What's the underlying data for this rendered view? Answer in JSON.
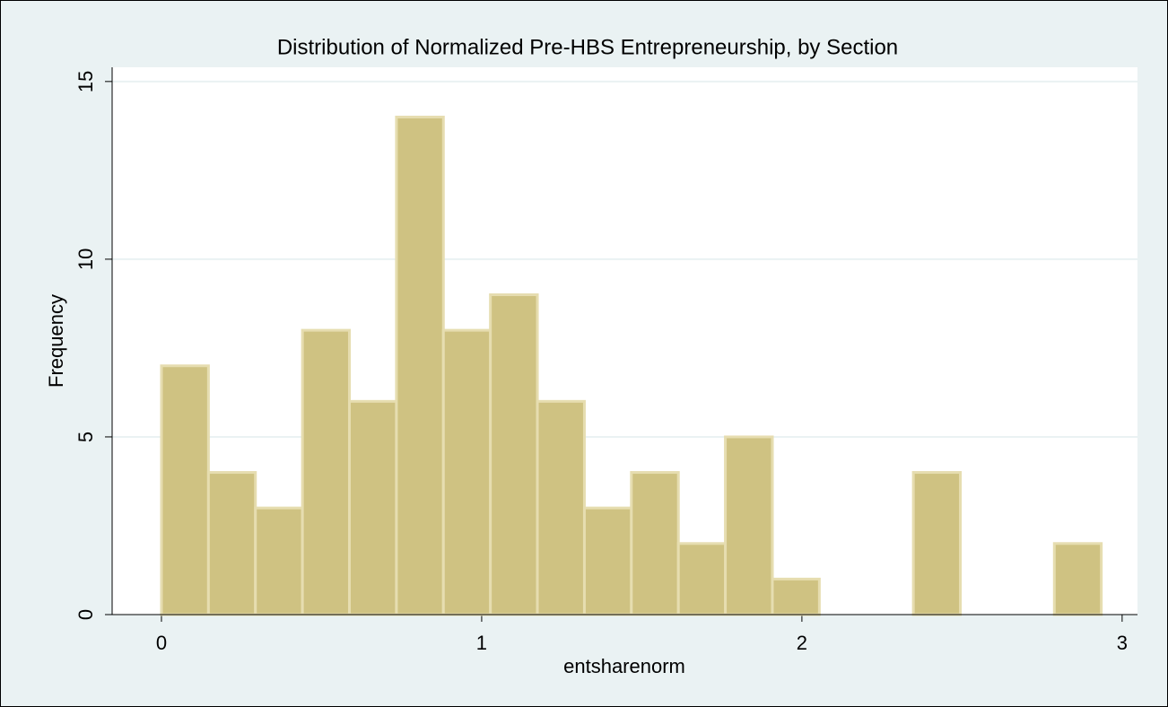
{
  "chart_data": {
    "type": "histogram",
    "title": "Distribution of Normalized Pre-HBS Entrepreneurship, by Section",
    "x_label": "entsharenorm",
    "y_label": "Frequency",
    "bins": [
      0,
      0.1468,
      0.2935,
      0.4403,
      0.587,
      0.7338,
      0.8805,
      1.0273,
      1.174,
      1.3208,
      1.4675,
      1.6143,
      1.761,
      1.9078,
      2.0545,
      2.2013,
      2.348,
      2.4948,
      2.6415,
      2.7883,
      2.935
    ],
    "counts": [
      7,
      4,
      3,
      8,
      6,
      14,
      8,
      9,
      6,
      3,
      4,
      2,
      5,
      1,
      0,
      0,
      4,
      0,
      0,
      2
    ],
    "color": "#cfc282",
    "xlim": [
      -0.154,
      3.048
    ],
    "xticks": [
      0,
      1,
      2,
      3
    ],
    "ylim": [
      0,
      15.4
    ],
    "yticks": [
      0,
      5,
      10,
      15
    ],
    "grid": true
  }
}
